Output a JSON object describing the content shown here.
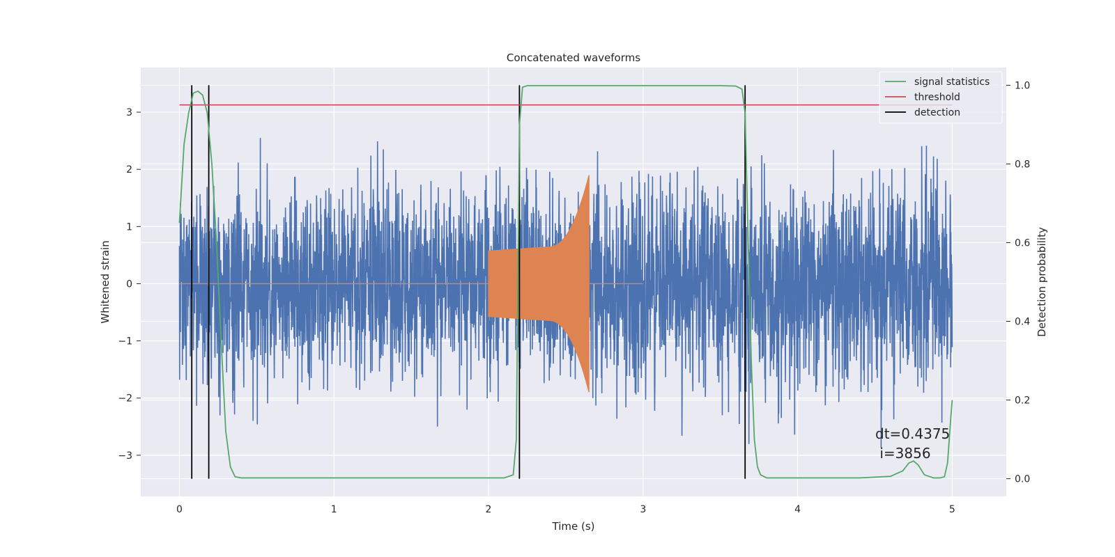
{
  "chart_data": {
    "type": "line",
    "title": "Concatenated waveforms",
    "xlabel": "Time (s)",
    "ylabel_left": "Whitened strain",
    "ylabel_right": "Detection probability",
    "xlim": [
      -0.25,
      5.35
    ],
    "ylim_left": [
      -3.72,
      3.78
    ],
    "ylim_right": [
      -0.045,
      1.045
    ],
    "x_ticks": [
      0,
      1,
      2,
      3,
      4,
      5
    ],
    "y_left_ticks": [
      -3,
      -2,
      -1,
      0,
      1,
      2,
      3
    ],
    "y_left_tick_labels": [
      "−3",
      "−2",
      "−1",
      "0",
      "1",
      "2",
      "3"
    ],
    "y_right_ticks": [
      0.0,
      0.2,
      0.4,
      0.6,
      0.8,
      1.0
    ],
    "y_right_tick_labels": [
      "0.0",
      "0.2",
      "0.4",
      "0.6",
      "0.8",
      "1.0"
    ],
    "grid": true,
    "legend_position": "top-right",
    "colors": {
      "background": "#eaeaf2",
      "grid": "#ffffff",
      "strain": "#4c72b0",
      "template": "#dd8452",
      "signal_statistics": "#55a868",
      "threshold": "#c44e52",
      "detection": "#000000"
    },
    "series": [
      {
        "name": "signal statistics",
        "axis": "right",
        "x": [
          0.0,
          0.03,
          0.06,
          0.09,
          0.12,
          0.15,
          0.18,
          0.21,
          0.24,
          0.27,
          0.3,
          0.33,
          0.36,
          0.4,
          0.5,
          1.0,
          1.5,
          2.0,
          2.1,
          2.16,
          2.18,
          2.2,
          2.22,
          2.25,
          2.3,
          2.5,
          3.0,
          3.5,
          3.6,
          3.64,
          3.66,
          3.68,
          3.7,
          3.72,
          3.74,
          3.76,
          3.8,
          4.0,
          4.4,
          4.6,
          4.68,
          4.72,
          4.75,
          4.78,
          4.82,
          4.88,
          4.92,
          4.95,
          4.97,
          4.99,
          5.0
        ],
        "y": [
          0.65,
          0.85,
          0.93,
          0.98,
          0.985,
          0.975,
          0.93,
          0.8,
          0.6,
          0.35,
          0.12,
          0.03,
          0.005,
          0.002,
          0.002,
          0.002,
          0.002,
          0.002,
          0.002,
          0.01,
          0.1,
          0.9,
          0.995,
          0.999,
          0.999,
          0.999,
          0.999,
          0.999,
          0.998,
          0.99,
          0.93,
          0.6,
          0.3,
          0.1,
          0.03,
          0.01,
          0.002,
          0.002,
          0.002,
          0.006,
          0.02,
          0.04,
          0.045,
          0.035,
          0.01,
          0.002,
          0.002,
          0.005,
          0.04,
          0.15,
          0.2
        ]
      },
      {
        "name": "threshold",
        "axis": "right",
        "x": [
          0,
          5
        ],
        "y": [
          0.95,
          0.95
        ]
      },
      {
        "name": "detection",
        "axis": "right",
        "vlines_x": [
          0.08,
          0.19,
          2.2,
          3.66
        ],
        "ymin": 0.0,
        "ymax": 1.0
      }
    ],
    "strain_noise": {
      "axis": "left",
      "x_range": [
        0,
        5
      ],
      "std": 0.85,
      "amplitude_limit": [
        -3.4,
        3.5
      ]
    },
    "template_waveform": {
      "axis": "left",
      "start": 2.0,
      "end": 2.65,
      "zero_until": 3.0,
      "amplitude_start": 0.58,
      "amplitude_mid": 0.65,
      "amplitude_peak": 1.9
    },
    "annotation": {
      "line1": "dt=0.4375",
      "line2": " i=3856"
    }
  }
}
